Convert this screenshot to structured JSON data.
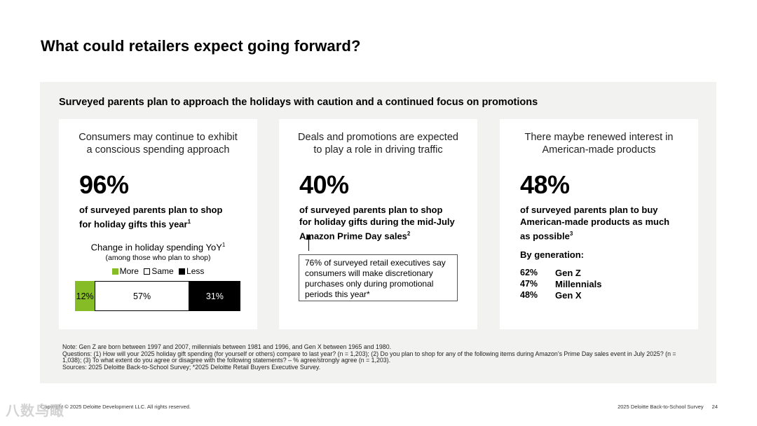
{
  "title": "What could retailers expect going forward?",
  "panel_heading": "Surveyed parents plan to approach the holidays with caution and a continued focus on promotions",
  "colors": {
    "more": "#86bc25",
    "same": "#ffffff",
    "less": "#000000",
    "panel_bg": "#f2f2f0"
  },
  "cards": [
    {
      "heading_line1": "Consumers may continue to exhibit",
      "heading_line2": "a conscious spending approach",
      "stat": "96%",
      "desc_line1": "of surveyed parents plan to shop",
      "desc_line2": "for holiday gifts this year",
      "desc_sup": "1",
      "chart_title": "Change in holiday spending YoY",
      "chart_title_sup": "1",
      "chart_subtitle": "(among those who plan to shop)",
      "legend": [
        "More",
        "Same",
        "Less"
      ]
    },
    {
      "heading_line1": "Deals and promotions are expected",
      "heading_line2": "to play a role in driving traffic",
      "stat": "40%",
      "desc_line1": "of surveyed parents plan to shop",
      "desc_line2": "for holiday gifts during the mid-July",
      "desc_line3": "Amazon Prime Day sales",
      "desc_sup": "2",
      "callout": "76% of surveyed retail executives say consumers will make discretionary purchases only during promotional periods this year*"
    },
    {
      "heading_line1": "There maybe renewed interest in",
      "heading_line2": "American-made products",
      "stat": "48%",
      "desc_line1": "of surveyed parents plan to buy",
      "desc_line2": "American-made products as much",
      "desc_line3": "as possible",
      "desc_sup": "3",
      "by_generation_label": "By generation:",
      "generations": [
        {
          "pct": "62%",
          "name": "Gen Z"
        },
        {
          "pct": "47%",
          "name": "Millennials"
        },
        {
          "pct": "48%",
          "name": "Gen X"
        }
      ]
    }
  ],
  "chart_data": {
    "type": "bar",
    "categories": [
      "More",
      "Same",
      "Less"
    ],
    "values": [
      12,
      57,
      31
    ],
    "labels": [
      "12%",
      "57%",
      "31%"
    ],
    "stacked": true,
    "title": "Change in holiday spending YoY",
    "subtitle": "(among those who plan to shop)"
  },
  "notes": [
    "Note: Gen Z are born between 1997 and 2007, millennials between 1981 and 1996, and Gen X between 1965 and 1980.",
    "Questions: (1) How will your 2025 holiday gift spending (for yourself or others) compare to last year? (n = 1,203); (2) Do you plan to shop for any of the following items during Amazon’s Prime Day sales event in July 2025? (n = 1,038); (3) To what extent do you agree or disagree with the following statements? – % agree/strongly agree (n = 1,203).",
    "Sources: 2025 Deloitte Back-to-School Survey; *2025 Deloitte Retail Buyers Executive Survey."
  ],
  "footer": {
    "copyright": "Copyright © 2025 Deloitte Development LLC. All rights reserved.",
    "survey": "2025 Deloitte Back-to-School Survey",
    "page": "24"
  },
  "watermark": "八数鸟瞰"
}
